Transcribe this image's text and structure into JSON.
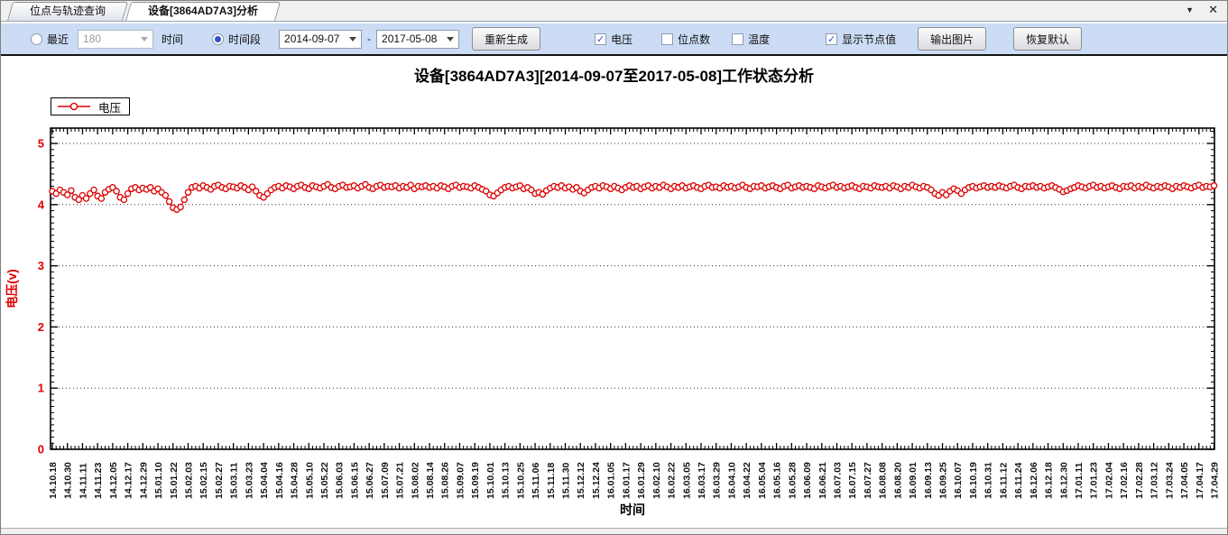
{
  "tabs": [
    {
      "label": "位点与轨迹查询",
      "active": false
    },
    {
      "label": "设备[3864AD7A3]分析",
      "active": true
    }
  ],
  "icons": {
    "chevron_down": "▼",
    "close": "✕",
    "check": "✓"
  },
  "toolbar": {
    "recent_radio_label": "最近",
    "recent_selected": false,
    "recent_value": "180",
    "time_label": "时间",
    "range_radio_label": "时间段",
    "range_selected": true,
    "date_from": "2014-09-07",
    "date_separator": "-",
    "date_to": "2017-05-08",
    "regenerate_button": "重新生成",
    "checkboxes": [
      {
        "label": "电压",
        "checked": true
      },
      {
        "label": "位点数",
        "checked": false
      },
      {
        "label": "温度",
        "checked": false
      },
      {
        "label": "显示节点值",
        "checked": true
      }
    ],
    "export_button": "输出图片",
    "reset_button": "恢复默认"
  },
  "colors": {
    "series": "#dd0000",
    "axis_label_red": "#dd0000",
    "toolbar_bg": "#cbdcf4"
  },
  "chart_data": {
    "type": "scatter",
    "title": "设备[3864AD7A3][2014-09-07至2017-05-08]工作状态分析",
    "xlabel": "时间",
    "ylabel": "电压(v)",
    "ylim": [
      0,
      5.25
    ],
    "yticks": [
      0,
      1,
      2,
      3,
      4,
      5
    ],
    "grid": "horizontal-dotted",
    "legend_position": "top-left",
    "legend": [
      {
        "name": "电压",
        "color": "#dd0000",
        "marker": "open-circle-line"
      }
    ],
    "x_tick_step_days": 12,
    "x_tick_labels": [
      "14.10.18",
      "14.10.30",
      "14.11.11",
      "14.11.23",
      "14.12.05",
      "14.12.17",
      "14.12.29",
      "15.01.10",
      "15.01.22",
      "15.02.03",
      "15.02.15",
      "15.02.27",
      "15.03.11",
      "15.03.23",
      "15.04.04",
      "15.04.16",
      "15.04.28",
      "15.05.10",
      "15.05.22",
      "15.06.03",
      "15.06.15",
      "15.06.27",
      "15.07.09",
      "15.07.21",
      "15.08.02",
      "15.08.14",
      "15.08.26",
      "15.09.07",
      "15.09.19",
      "15.10.01",
      "15.10.13",
      "15.10.25",
      "15.11.06",
      "15.11.18",
      "15.11.30",
      "15.12.12",
      "15.12.24",
      "16.01.05",
      "16.01.17",
      "16.01.29",
      "16.02.10",
      "16.02.22",
      "16.03.05",
      "16.03.17",
      "16.03.29",
      "16.04.10",
      "16.04.22",
      "16.05.04",
      "16.05.16",
      "16.05.28",
      "16.06.09",
      "16.06.21",
      "16.07.03",
      "16.07.15",
      "16.07.27",
      "16.08.08",
      "16.08.20",
      "16.09.01",
      "16.09.13",
      "16.09.25",
      "16.10.07",
      "16.10.19",
      "16.10.31",
      "16.11.12",
      "16.11.24",
      "16.12.06",
      "16.12.18",
      "16.12.30",
      "17.01.11",
      "17.01.23",
      "17.02.04",
      "17.02.16",
      "17.02.28",
      "17.03.12",
      "17.03.24",
      "17.04.05",
      "17.04.17",
      "17.04.29"
    ],
    "series": [
      {
        "name": "电压",
        "unit": "V",
        "x_start": "2014-10-18",
        "x_step_days": 3,
        "values": [
          4.22,
          4.18,
          4.24,
          4.2,
          4.16,
          4.23,
          4.12,
          4.08,
          4.15,
          4.1,
          4.18,
          4.24,
          4.14,
          4.1,
          4.2,
          4.25,
          4.28,
          4.22,
          4.12,
          4.08,
          4.18,
          4.26,
          4.28,
          4.24,
          4.27,
          4.25,
          4.28,
          4.22,
          4.26,
          4.2,
          4.15,
          4.05,
          3.95,
          3.92,
          3.96,
          4.08,
          4.2,
          4.28,
          4.3,
          4.27,
          4.31,
          4.28,
          4.25,
          4.3,
          4.32,
          4.28,
          4.26,
          4.3,
          4.29,
          4.27,
          4.31,
          4.28,
          4.24,
          4.29,
          4.22,
          4.15,
          4.12,
          4.18,
          4.24,
          4.28,
          4.3,
          4.27,
          4.31,
          4.29,
          4.26,
          4.3,
          4.32,
          4.28,
          4.26,
          4.31,
          4.29,
          4.27,
          4.3,
          4.33,
          4.28,
          4.26,
          4.3,
          4.32,
          4.28,
          4.29,
          4.31,
          4.27,
          4.3,
          4.33,
          4.28,
          4.26,
          4.3,
          4.32,
          4.28,
          4.3,
          4.29,
          4.31,
          4.27,
          4.3,
          4.28,
          4.32,
          4.26,
          4.3,
          4.29,
          4.31,
          4.28,
          4.3,
          4.27,
          4.31,
          4.29,
          4.26,
          4.3,
          4.32,
          4.28,
          4.3,
          4.29,
          4.27,
          4.31,
          4.28,
          4.25,
          4.22,
          4.16,
          4.14,
          4.19,
          4.24,
          4.28,
          4.3,
          4.27,
          4.29,
          4.31,
          4.26,
          4.28,
          4.24,
          4.18,
          4.2,
          4.17,
          4.23,
          4.27,
          4.3,
          4.28,
          4.31,
          4.27,
          4.29,
          4.25,
          4.28,
          4.22,
          4.19,
          4.24,
          4.28,
          4.3,
          4.27,
          4.31,
          4.29,
          4.26,
          4.3,
          4.27,
          4.24,
          4.28,
          4.31,
          4.28,
          4.3,
          4.26,
          4.29,
          4.31,
          4.27,
          4.3,
          4.28,
          4.32,
          4.29,
          4.26,
          4.3,
          4.28,
          4.31,
          4.27,
          4.29,
          4.31,
          4.28,
          4.26,
          4.3,
          4.32,
          4.28,
          4.29,
          4.27,
          4.31,
          4.28,
          4.3,
          4.27,
          4.29,
          4.32,
          4.28,
          4.26,
          4.3,
          4.29,
          4.31,
          4.27,
          4.29,
          4.31,
          4.28,
          4.26,
          4.3,
          4.32,
          4.27,
          4.29,
          4.31,
          4.28,
          4.3,
          4.28,
          4.26,
          4.31,
          4.29,
          4.27,
          4.3,
          4.32,
          4.28,
          4.3,
          4.27,
          4.29,
          4.31,
          4.28,
          4.26,
          4.3,
          4.29,
          4.27,
          4.31,
          4.29,
          4.28,
          4.3,
          4.27,
          4.31,
          4.29,
          4.26,
          4.3,
          4.28,
          4.32,
          4.29,
          4.27,
          4.3,
          4.28,
          4.24,
          4.18,
          4.15,
          4.2,
          4.16,
          4.22,
          4.26,
          4.23,
          4.18,
          4.24,
          4.28,
          4.3,
          4.27,
          4.29,
          4.31,
          4.28,
          4.3,
          4.28,
          4.31,
          4.29,
          4.27,
          4.3,
          4.32,
          4.28,
          4.26,
          4.3,
          4.29,
          4.31,
          4.28,
          4.3,
          4.27,
          4.29,
          4.31,
          4.28,
          4.25,
          4.21,
          4.23,
          4.26,
          4.28,
          4.31,
          4.29,
          4.27,
          4.3,
          4.32,
          4.28,
          4.3,
          4.27,
          4.29,
          4.31,
          4.28,
          4.26,
          4.3,
          4.29,
          4.31,
          4.27,
          4.3,
          4.28,
          4.32,
          4.29,
          4.27,
          4.3,
          4.28,
          4.31,
          4.29,
          4.26,
          4.3,
          4.28,
          4.31,
          4.29,
          4.27,
          4.3,
          4.32,
          4.28,
          4.3,
          4.29,
          4.31
        ]
      }
    ]
  }
}
